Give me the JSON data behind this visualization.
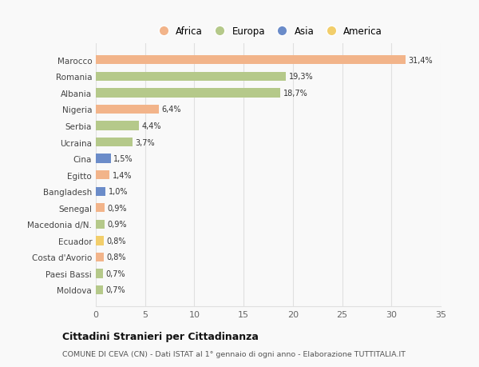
{
  "countries": [
    "Marocco",
    "Romania",
    "Albania",
    "Nigeria",
    "Serbia",
    "Ucraina",
    "Cina",
    "Egitto",
    "Bangladesh",
    "Senegal",
    "Macedonia d/N.",
    "Ecuador",
    "Costa d'Avorio",
    "Paesi Bassi",
    "Moldova"
  ],
  "values": [
    31.4,
    19.3,
    18.7,
    6.4,
    4.4,
    3.7,
    1.5,
    1.4,
    1.0,
    0.9,
    0.9,
    0.8,
    0.8,
    0.7,
    0.7
  ],
  "labels": [
    "31,4%",
    "19,3%",
    "18,7%",
    "6,4%",
    "4,4%",
    "3,7%",
    "1,5%",
    "1,4%",
    "1,0%",
    "0,9%",
    "0,9%",
    "0,8%",
    "0,8%",
    "0,7%",
    "0,7%"
  ],
  "continents": [
    "Africa",
    "Europa",
    "Europa",
    "Africa",
    "Europa",
    "Europa",
    "Asia",
    "Africa",
    "Asia",
    "Africa",
    "Europa",
    "America",
    "Africa",
    "Europa",
    "Europa"
  ],
  "continent_colors": {
    "Africa": "#F2B48A",
    "Europa": "#B5C98A",
    "Asia": "#6B8CC9",
    "America": "#F2CE6B"
  },
  "legend_order": [
    "Africa",
    "Europa",
    "Asia",
    "America"
  ],
  "xlim": [
    0,
    35
  ],
  "xticks": [
    0,
    5,
    10,
    15,
    20,
    25,
    30,
    35
  ],
  "title": "Cittadini Stranieri per Cittadinanza",
  "subtitle": "COMUNE DI CEVA (CN) - Dati ISTAT al 1° gennaio di ogni anno - Elaborazione TUTTITALIA.IT",
  "background_color": "#f9f9f9",
  "bar_height": 0.55,
  "grid_color": "#e0e0e0"
}
